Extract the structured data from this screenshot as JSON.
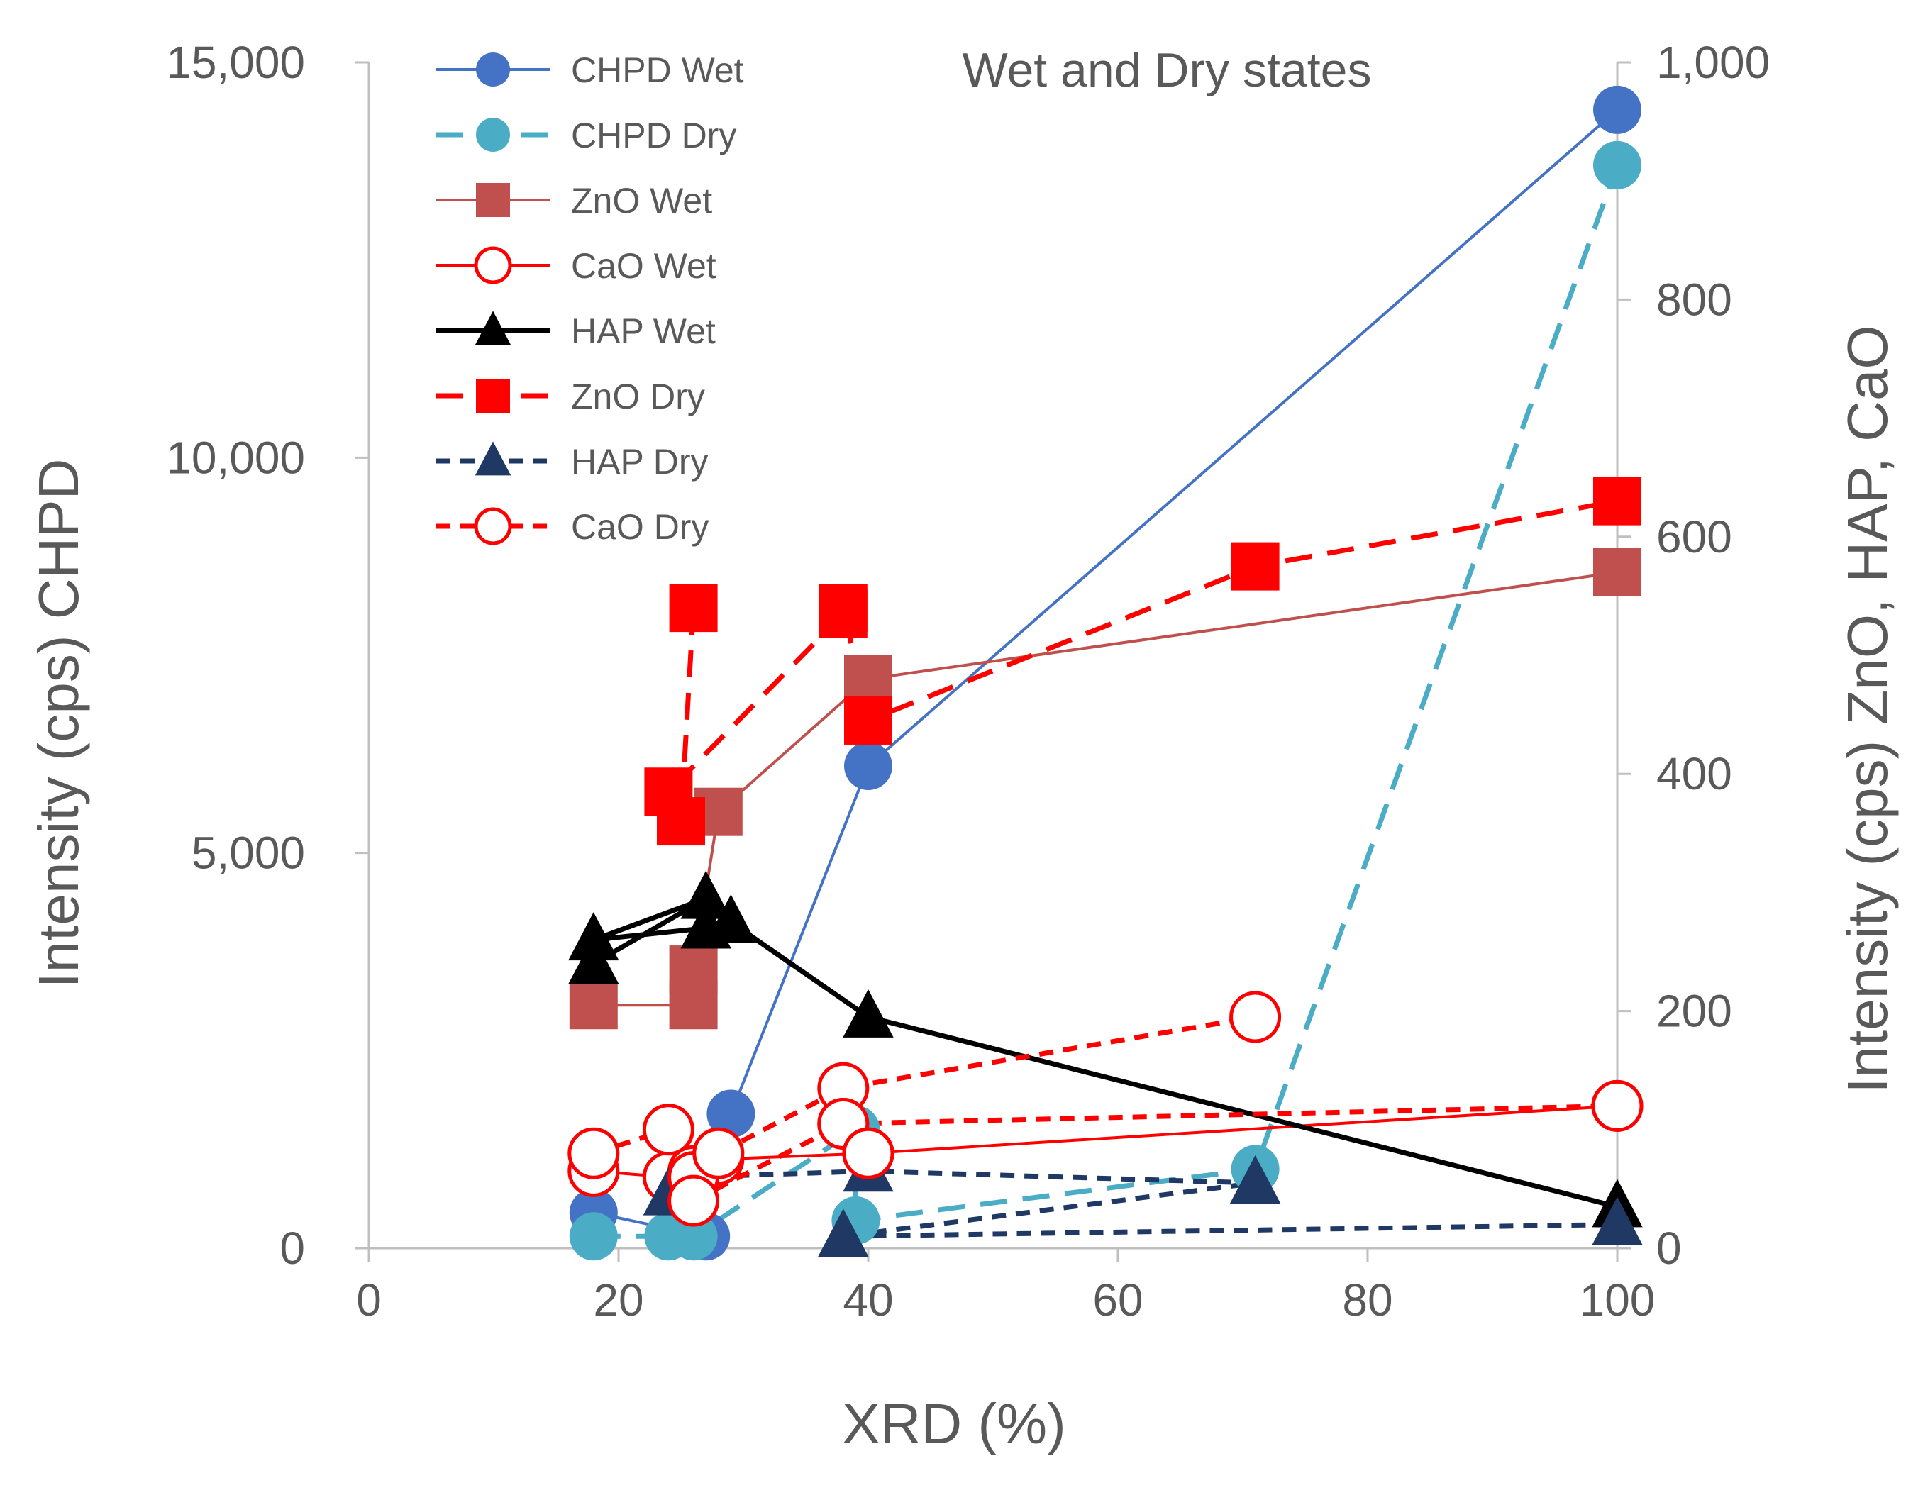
{
  "chart_data": {
    "type": "line",
    "title": "Wet and Dry states",
    "xlabel": "XRD (%)",
    "ylabel_left": "Intensity  (cps) CHPD",
    "ylabel_right": "Intensity (cps) ZnO, HAP, CaO",
    "xlim": [
      0,
      100
    ],
    "x_ticks": [
      "0",
      "20",
      "40",
      "60",
      "80",
      "100"
    ],
    "ylim_left": [
      0,
      15000
    ],
    "y_left_ticks": [
      "0",
      "5,000",
      "10,000",
      "15,000"
    ],
    "ylim_right": [
      0,
      1000
    ],
    "y_right_ticks": [
      "0",
      "200",
      "400",
      "600",
      "800",
      "1,000"
    ],
    "legend_position": "top-left",
    "series": [
      {
        "name": "CHPD Wet",
        "axis": "left",
        "color": "#4472C4",
        "dash": "solid",
        "marker": "circle",
        "marker_fill": "filled",
        "x": [
          18,
          27,
          29,
          40,
          100
        ],
        "y": [
          450,
          150,
          1700,
          6100,
          14400
        ]
      },
      {
        "name": "CHPD Dry",
        "axis": "left",
        "color": "#4BACC6",
        "dash": "long",
        "marker": "circle",
        "marker_fill": "filled",
        "x": [
          18,
          24,
          26,
          39,
          39,
          71,
          100
        ],
        "y": [
          150,
          150,
          150,
          1500,
          350,
          1000,
          13700
        ]
      },
      {
        "name": "ZnO Wet",
        "axis": "right",
        "color": "#C0504D",
        "dash": "solid",
        "marker": "square",
        "marker_fill": "filled",
        "x": [
          18,
          26,
          26,
          28,
          40,
          100
        ],
        "y": [
          205,
          205,
          235,
          368,
          480,
          570
        ]
      },
      {
        "name": "CaO Wet",
        "axis": "right",
        "color": "#FF0000",
        "dash": "solid",
        "marker": "circle",
        "marker_fill": "open",
        "x": [
          18,
          24,
          26,
          28,
          40,
          100
        ],
        "y": [
          65,
          60,
          65,
          75,
          80,
          120
        ]
      },
      {
        "name": "HAP Wet",
        "axis": "right",
        "color": "#000000",
        "dash": "solid",
        "marker": "triangle",
        "marker_fill": "filled",
        "x": [
          18,
          27,
          18,
          27,
          29,
          40,
          100
        ],
        "y": [
          240,
          295,
          260,
          270,
          275,
          195,
          35
        ]
      },
      {
        "name": "ZnO Dry",
        "axis": "right",
        "color": "#FF0000",
        "dash": "long",
        "marker": "square",
        "marker_fill": "filled",
        "x": [
          26,
          25,
          24,
          38,
          38,
          40,
          71,
          100
        ],
        "y": [
          540,
          360,
          385,
          535,
          540,
          445,
          575,
          630
        ]
      },
      {
        "name": "HAP Dry",
        "axis": "right",
        "color": "#1F3864",
        "dash": "short",
        "marker": "triangle",
        "marker_fill": "filled",
        "x": [
          24,
          26,
          40,
          71,
          38,
          100
        ],
        "y": [
          45,
          60,
          65,
          55,
          10,
          20
        ]
      },
      {
        "name": "CaO Dry",
        "axis": "right",
        "color": "#FF0000",
        "dash": "short",
        "marker": "circle",
        "marker_fill": "open",
        "x": [
          18,
          24,
          26,
          28,
          38,
          71
        ],
        "y": [
          80,
          100,
          60,
          80,
          135,
          195
        ]
      }
    ],
    "extra_segments": [
      {
        "series": "CaO Dry",
        "x": [
          38,
          100
        ],
        "y": [
          105,
          120
        ]
      },
      {
        "series": "CaO Dry",
        "x": [
          26,
          38
        ],
        "y": [
          40,
          105
        ]
      },
      {
        "series": "CaO Dry",
        "x": [
          40,
          40
        ],
        "y": [
          80,
          80
        ]
      }
    ]
  }
}
